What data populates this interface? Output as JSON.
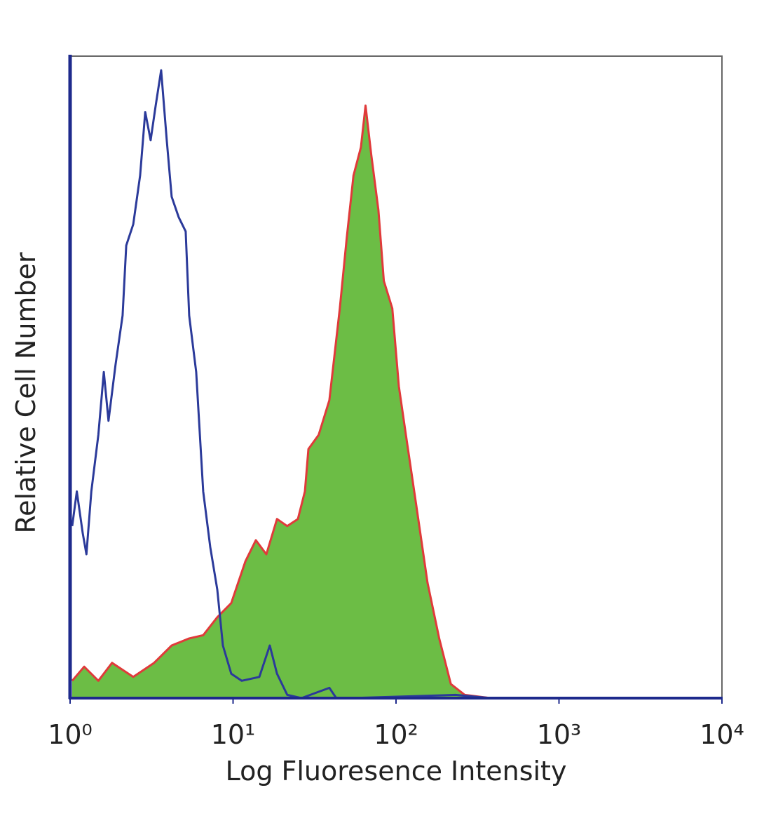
{
  "chart_data": {
    "type": "line",
    "xlabel": "Log Fluoresence Intensity",
    "ylabel": "Relative Cell Number",
    "xscale": "log",
    "xlim": [
      1,
      10000
    ],
    "xticks": [
      {
        "value": 1,
        "label": "10⁰"
      },
      {
        "value": 10,
        "label": "10¹"
      },
      {
        "value": 100,
        "label": "10²"
      },
      {
        "value": 1000,
        "label": "10³"
      },
      {
        "value": 10000,
        "label": "10⁴"
      }
    ],
    "ylim": [
      0,
      100
    ],
    "series": [
      {
        "color": "#2b3a9a",
        "fill": null,
        "x": [
          1.03,
          1.1,
          1.195,
          1.26,
          1.35,
          1.49,
          1.61,
          1.72,
          1.9,
          2.1,
          2.21,
          2.44,
          2.69,
          2.89,
          3.12,
          3.35,
          3.62,
          3.92,
          4.2,
          4.64,
          5.12,
          5.38,
          5.94,
          6.56,
          7.25,
          8.0,
          8.66,
          9.75,
          11.3,
          14.5,
          16.8,
          18.6,
          21.5,
          26.3,
          39.0,
          43.0,
          52.5,
          232,
          381,
          10000
        ],
        "values": [
          26.8,
          32.2,
          25.7,
          22.4,
          32.2,
          41.0,
          50.8,
          43.2,
          51.9,
          59.6,
          70.5,
          73.8,
          81.4,
          91.3,
          86.9,
          92.3,
          97.8,
          86.9,
          78.1,
          74.9,
          72.7,
          59.6,
          50.8,
          32.2,
          23.5,
          16.9,
          8.2,
          3.8,
          2.7,
          3.3,
          8.2,
          3.8,
          0.5,
          0,
          1.6,
          0,
          0,
          0.5,
          0,
          0
        ]
      },
      {
        "color": "#e03a3a",
        "fill": "#6cbd45",
        "x": [
          1.03,
          1.22,
          1.49,
          1.81,
          2.44,
          3.28,
          4.2,
          5.38,
          6.56,
          8.0,
          9.75,
          11.9,
          13.8,
          16.0,
          18.6,
          21.5,
          25.0,
          27.6,
          29.0,
          33.5,
          39.0,
          45.2,
          49.8,
          54.8,
          60.9,
          65.0,
          70.4,
          78.0,
          84.2,
          94.9,
          104,
          115,
          133,
          156,
          184,
          217,
          264,
          381
        ],
        "values": [
          2.7,
          4.9,
          2.7,
          5.5,
          3.3,
          5.5,
          8.2,
          9.3,
          9.8,
          12.6,
          14.8,
          21.3,
          24.6,
          22.4,
          27.9,
          26.8,
          27.9,
          32.2,
          38.8,
          41.0,
          46.4,
          60.7,
          71.6,
          81.4,
          85.8,
          92.3,
          84.7,
          76.0,
          65.0,
          60.7,
          48.6,
          41.0,
          30.1,
          18.0,
          9.3,
          2.2,
          0.5,
          0
        ]
      }
    ]
  }
}
